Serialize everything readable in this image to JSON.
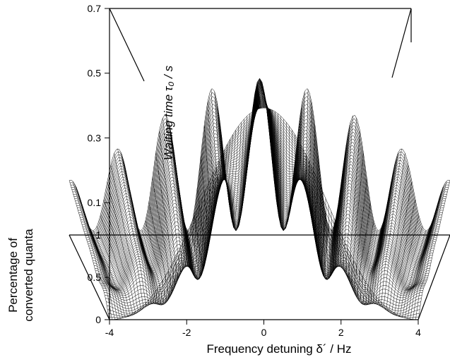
{
  "chart_data": {
    "type": "surface",
    "xlabel": "Frequency detuning  δ´ / Hz",
    "ylabel": "Waiting time τ₀ / s",
    "zlabel_line1": "Percentage of",
    "zlabel_line2": "converted quanta",
    "x_range": [
      -4,
      4
    ],
    "x_ticks": [
      "-4",
      "-2",
      "0",
      "2",
      "4"
    ],
    "y_range": [
      0.0,
      0.7
    ],
    "y_ticks": [
      "0.1",
      "0.3",
      "0.5",
      "0.7"
    ],
    "z_range": [
      0,
      1
    ],
    "z_ticks": [
      "0",
      "0.5",
      "1"
    ],
    "peak_x": [
      -3,
      -2,
      -1,
      0,
      1,
      2,
      3
    ],
    "peak_z": [
      0.65,
      0.72,
      0.73,
      0.72,
      0.73,
      0.72,
      0.65
    ],
    "front_edge_x": [
      -2.0,
      -1.0,
      0.0,
      1.0,
      2.0
    ],
    "front_edge_z": [
      0.15,
      0.3,
      1.0,
      0.3,
      0.15
    ],
    "grid": true
  }
}
